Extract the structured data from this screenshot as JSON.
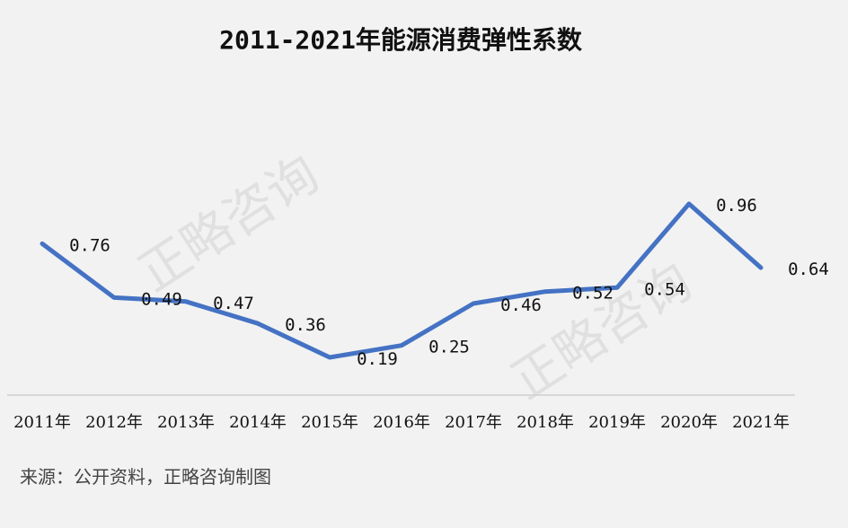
{
  "chart_data": {
    "type": "line",
    "title": "2011-2021年能源消费弹性系数",
    "categories": [
      "2011年",
      "2012年",
      "2013年",
      "2014年",
      "2015年",
      "2016年",
      "2017年",
      "2018年",
      "2019年",
      "2020年",
      "2021年"
    ],
    "series": [
      {
        "values": [
          0.76,
          0.49,
          0.47,
          0.36,
          0.19,
          0.25,
          0.46,
          0.52,
          0.54,
          0.96,
          0.64
        ]
      }
    ],
    "data_labels": [
      "0.76",
      "0.49",
      "0.47",
      "0.36",
      "0.19",
      "0.25",
      "0.46",
      "0.52",
      "0.54",
      "0.96",
      "0.64"
    ],
    "xlabel": "",
    "ylabel": "",
    "grid": false,
    "legend": "none",
    "color": "#4472c4"
  },
  "source": "来源：公开资料，正略咨询制图",
  "watermark": "正略咨询"
}
